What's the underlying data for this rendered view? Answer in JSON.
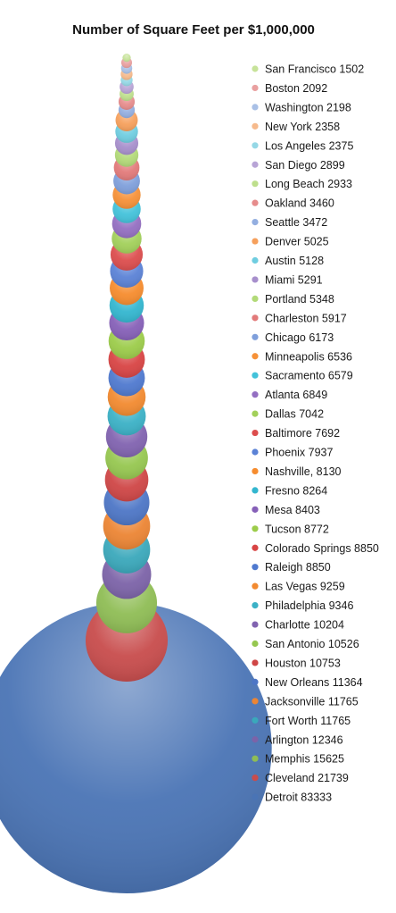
{
  "chart_data": {
    "type": "bubble",
    "title": "Number of Square Feet per $1,000,000",
    "legend_position": "right",
    "series": [
      {
        "name": "San Francisco",
        "label": "San Francisco 1502",
        "value": 1502,
        "color": "#c7e39a"
      },
      {
        "name": "Boston",
        "label": "Boston 2092",
        "value": 2092,
        "color": "#e9a0a0"
      },
      {
        "name": "Washington",
        "label": "Washington 2198",
        "value": 2198,
        "color": "#a9c0e6"
      },
      {
        "name": "New York",
        "label": "New York 2358",
        "value": 2358,
        "color": "#f6ba8c"
      },
      {
        "name": "Los Angeles",
        "label": "Los Angeles 2375",
        "value": 2375,
        "color": "#95d8e6"
      },
      {
        "name": "San Diego",
        "label": "San Diego 2899",
        "value": 2899,
        "color": "#b8a4d6"
      },
      {
        "name": "Long Beach",
        "label": "Long Beach 2933",
        "value": 2933,
        "color": "#bedf8c"
      },
      {
        "name": "Oakland",
        "label": "Oakland 3460",
        "value": 3460,
        "color": "#e68c8c"
      },
      {
        "name": "Seattle",
        "label": "Seattle 3472",
        "value": 3472,
        "color": "#93aee0"
      },
      {
        "name": "Denver",
        "label": "Denver 5025",
        "value": 5025,
        "color": "#f6a05c"
      },
      {
        "name": "Austin",
        "label": "Austin 5128",
        "value": 5128,
        "color": "#6fcde0"
      },
      {
        "name": "Miami",
        "label": "Miami 5291",
        "value": 5291,
        "color": "#a78fcc"
      },
      {
        "name": "Portland",
        "label": "Portland 5348",
        "value": 5348,
        "color": "#b2da78"
      },
      {
        "name": "Charleston",
        "label": "Charleston 5917",
        "value": 5917,
        "color": "#e27a7a"
      },
      {
        "name": "Chicago",
        "label": "Chicago 6173",
        "value": 6173,
        "color": "#7f9fdb"
      },
      {
        "name": "Minneapolis",
        "label": "Minneapolis 6536",
        "value": 6536,
        "color": "#f69138"
      },
      {
        "name": "Sacramento",
        "label": "Sacramento 6579",
        "value": 6579,
        "color": "#43c2da"
      },
      {
        "name": "Atlanta",
        "label": "Atlanta 6849",
        "value": 6849,
        "color": "#946fc2"
      },
      {
        "name": "Dallas",
        "label": "Dallas 7042",
        "value": 7042,
        "color": "#a2d05a"
      },
      {
        "name": "Baltimore",
        "label": "Baltimore 7692",
        "value": 7692,
        "color": "#dc4d4d"
      },
      {
        "name": "Phoenix",
        "label": "Phoenix 7937",
        "value": 7937,
        "color": "#5b82d6"
      },
      {
        "name": "Nashville",
        "label": "Nashville, 8130",
        "value": 8130,
        "color": "#f68c2e"
      },
      {
        "name": "Fresno",
        "label": "Fresno 8264",
        "value": 8264,
        "color": "#33b6cf"
      },
      {
        "name": "Mesa",
        "label": "Mesa 8403",
        "value": 8403,
        "color": "#8660b8"
      },
      {
        "name": "Tucson",
        "label": "Tucson 8772",
        "value": 8772,
        "color": "#9ccc4a"
      },
      {
        "name": "Colorado Springs",
        "label": "Colorado Springs 8850",
        "value": 8850,
        "color": "#d84444"
      },
      {
        "name": "Raleigh",
        "label": "Raleigh 8850",
        "value": 8850,
        "color": "#4f79cf"
      },
      {
        "name": "Las Vegas",
        "label": "Las Vegas 9259",
        "value": 9259,
        "color": "#f28a30"
      },
      {
        "name": "Philadelphia",
        "label": "Philadelphia 9346",
        "value": 9346,
        "color": "#3bb1c6"
      },
      {
        "name": "Charlotte",
        "label": "Charlotte 10204",
        "value": 10204,
        "color": "#8163b0"
      },
      {
        "name": "San Antonio",
        "label": "San Antonio 10526",
        "value": 10526,
        "color": "#96c750"
      },
      {
        "name": "Houston",
        "label": "Houston 10753",
        "value": 10753,
        "color": "#cf4646"
      },
      {
        "name": "New Orleans",
        "label": "New Orleans 11364",
        "value": 11364,
        "color": "#4d76c6"
      },
      {
        "name": "Jacksonville",
        "label": "Jacksonville 11765",
        "value": 11765,
        "color": "#ec8534"
      },
      {
        "name": "Fort Worth",
        "label": "Fort Worth 11765",
        "value": 11765,
        "color": "#3aa8bb"
      },
      {
        "name": "Arlington",
        "label": "Arlington 12346",
        "value": 12346,
        "color": "#7c63a8"
      },
      {
        "name": "Memphis",
        "label": "Memphis 15625",
        "value": 15625,
        "color": "#8fbd55"
      },
      {
        "name": "Cleveland",
        "label": "Cleveland 21739",
        "value": 21739,
        "color": "#c84c4c"
      },
      {
        "name": "Detroit",
        "label": "Detroit 83333",
        "value": 83333,
        "color": "#4a74b5"
      }
    ]
  }
}
